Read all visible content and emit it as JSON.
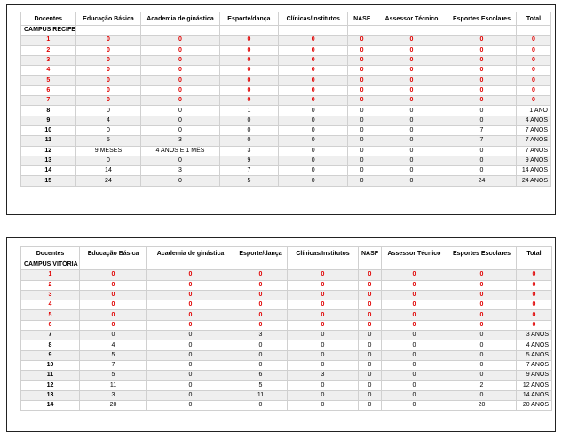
{
  "headers": [
    "Docentes",
    "Educação Básica",
    "Academia de ginástica",
    "Esporte/dança",
    "Clínicas/Institutos",
    "NASF",
    "Assessor Técnico",
    "Esportes Escolares",
    "Total"
  ],
  "tables": [
    {
      "campus": "CAMPUS RECIFE",
      "rows": [
        {
          "cells": [
            "1",
            "0",
            "0",
            "0",
            "0",
            "0",
            "0",
            "0",
            "0"
          ],
          "red": true
        },
        {
          "cells": [
            "2",
            "0",
            "0",
            "0",
            "0",
            "0",
            "0",
            "0",
            "0"
          ],
          "red": true
        },
        {
          "cells": [
            "3",
            "0",
            "0",
            "0",
            "0",
            "0",
            "0",
            "0",
            "0"
          ],
          "red": true
        },
        {
          "cells": [
            "4",
            "0",
            "0",
            "0",
            "0",
            "0",
            "0",
            "0",
            "0"
          ],
          "red": true
        },
        {
          "cells": [
            "5",
            "0",
            "0",
            "0",
            "0",
            "0",
            "0",
            "0",
            "0"
          ],
          "red": true
        },
        {
          "cells": [
            "6",
            "0",
            "0",
            "0",
            "0",
            "0",
            "0",
            "0",
            "0"
          ],
          "red": true
        },
        {
          "cells": [
            "7",
            "0",
            "0",
            "0",
            "0",
            "0",
            "0",
            "0",
            "0"
          ],
          "red": true
        },
        {
          "cells": [
            "8",
            "0",
            "0",
            "1",
            "0",
            "0",
            "0",
            "0",
            "1 ANO"
          ],
          "red": false
        },
        {
          "cells": [
            "9",
            "4",
            "0",
            "0",
            "0",
            "0",
            "0",
            "0",
            "4 ANOS"
          ],
          "red": false
        },
        {
          "cells": [
            "10",
            "0",
            "0",
            "0",
            "0",
            "0",
            "0",
            "7",
            "7 ANOS"
          ],
          "red": false
        },
        {
          "cells": [
            "11",
            "5",
            "3",
            "0",
            "0",
            "0",
            "0",
            "7",
            "7 ANOS"
          ],
          "red": false
        },
        {
          "cells": [
            "12",
            "9 MESES",
            "4 ANOS E 1 MÊS",
            "3",
            "0",
            "0",
            "0",
            "0",
            "7 ANOS"
          ],
          "red": false
        },
        {
          "cells": [
            "13",
            "0",
            "0",
            "9",
            "0",
            "0",
            "0",
            "0",
            "9 ANOS"
          ],
          "red": false
        },
        {
          "cells": [
            "14",
            "14",
            "3",
            "7",
            "0",
            "0",
            "0",
            "0",
            "14 ANOS"
          ],
          "red": false
        },
        {
          "cells": [
            "15",
            "24",
            "0",
            "5",
            "0",
            "0",
            "0",
            "24",
            "24 ANOS"
          ],
          "red": false
        }
      ]
    },
    {
      "campus": "CAMPUS VITÓRIA",
      "rows": [
        {
          "cells": [
            "1",
            "0",
            "0",
            "0",
            "0",
            "0",
            "0",
            "0",
            "0"
          ],
          "red": true
        },
        {
          "cells": [
            "2",
            "0",
            "0",
            "0",
            "0",
            "0",
            "0",
            "0",
            "0"
          ],
          "red": true
        },
        {
          "cells": [
            "3",
            "0",
            "0",
            "0",
            "0",
            "0",
            "0",
            "0",
            "0"
          ],
          "red": true
        },
        {
          "cells": [
            "4",
            "0",
            "0",
            "0",
            "0",
            "0",
            "0",
            "0",
            "0"
          ],
          "red": true
        },
        {
          "cells": [
            "5",
            "0",
            "0",
            "0",
            "0",
            "0",
            "0",
            "0",
            "0"
          ],
          "red": true
        },
        {
          "cells": [
            "6",
            "0",
            "0",
            "0",
            "0",
            "0",
            "0",
            "0",
            "0"
          ],
          "red": true
        },
        {
          "cells": [
            "7",
            "0",
            "0",
            "3",
            "0",
            "0",
            "0",
            "0",
            "3 ANOS"
          ],
          "red": false
        },
        {
          "cells": [
            "8",
            "4",
            "0",
            "0",
            "0",
            "0",
            "0",
            "0",
            "4 ANOS"
          ],
          "red": false
        },
        {
          "cells": [
            "9",
            "5",
            "0",
            "0",
            "0",
            "0",
            "0",
            "0",
            "5 ANOS"
          ],
          "red": false
        },
        {
          "cells": [
            "10",
            "7",
            "0",
            "0",
            "0",
            "0",
            "0",
            "0",
            "7 ANOS"
          ],
          "red": false
        },
        {
          "cells": [
            "11",
            "5",
            "0",
            "6",
            "3",
            "0",
            "0",
            "0",
            "9 ANOS"
          ],
          "red": false
        },
        {
          "cells": [
            "12",
            "11",
            "0",
            "5",
            "0",
            "0",
            "0",
            "2",
            "12 ANOS"
          ],
          "red": false
        },
        {
          "cells": [
            "13",
            "3",
            "0",
            "11",
            "0",
            "0",
            "0",
            "0",
            "14 ANOS"
          ],
          "red": false
        },
        {
          "cells": [
            "14",
            "20",
            "0",
            "0",
            "0",
            "0",
            "0",
            "20",
            "20 ANOS"
          ],
          "red": false
        }
      ]
    }
  ],
  "colors": {
    "red_value": "#e00000",
    "stripe": "#efefef",
    "border": "#d0d0d0"
  }
}
